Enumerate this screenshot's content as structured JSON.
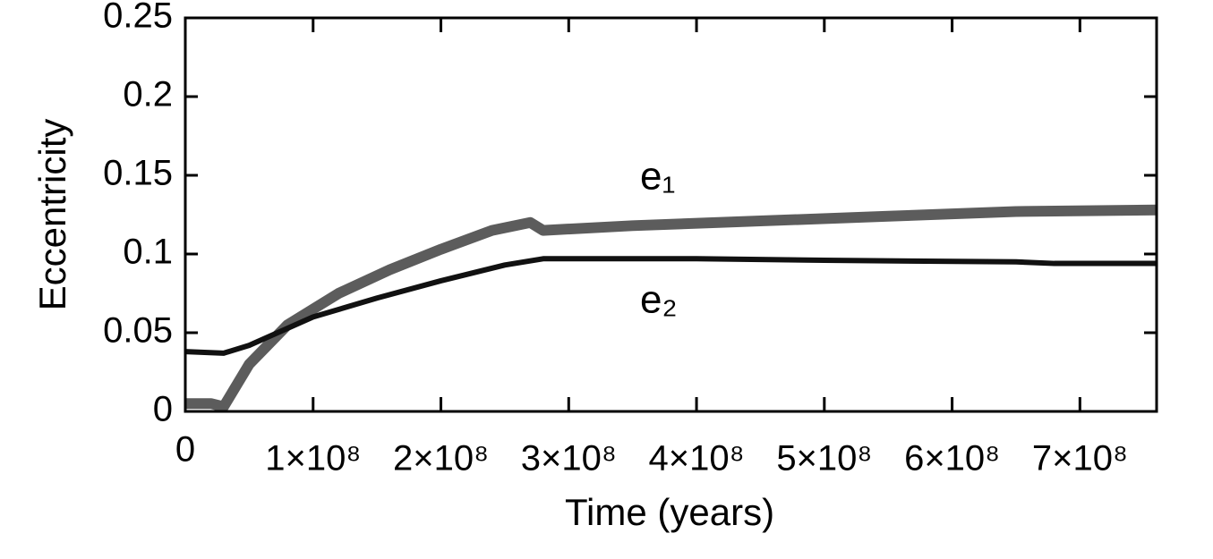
{
  "chart_data": {
    "type": "line",
    "xlabel": "Time (years)",
    "ylabel": "Eccentricity",
    "xlim": [
      0,
      760000000
    ],
    "ylim": [
      0,
      0.25
    ],
    "xticks": [
      0,
      {
        "value": 100000000,
        "label": "1×10⁸"
      },
      {
        "value": 200000000,
        "label": "2×10⁸"
      },
      {
        "value": 300000000,
        "label": "3×10⁸"
      },
      {
        "value": 400000000,
        "label": "4×10⁸"
      },
      {
        "value": 500000000,
        "label": "5×10⁸"
      },
      {
        "value": 600000000,
        "label": "6×10⁸"
      },
      {
        "value": 700000000,
        "label": "7×10⁸"
      }
    ],
    "yticks": [
      0,
      0.05,
      0.1,
      0.15,
      0.2,
      0.25
    ],
    "annotations": [
      "e₁",
      "e₂"
    ],
    "series": [
      {
        "color": "#333333",
        "x": [
          0,
          20000000,
          30000000,
          50000000,
          80000000,
          120000000,
          160000000,
          200000000,
          240000000,
          270000000,
          280000000,
          350000000,
          450000000,
          550000000,
          650000000,
          760000000
        ],
        "values": [
          0.005,
          0.005,
          0.003,
          0.03,
          0.055,
          0.075,
          0.09,
          0.103,
          0.115,
          0.12,
          0.115,
          0.118,
          0.121,
          0.124,
          0.127,
          0.128
        ]
      },
      {
        "color": "#111111",
        "x": [
          0,
          30000000,
          50000000,
          100000000,
          150000000,
          200000000,
          250000000,
          280000000,
          400000000,
          500000000,
          650000000,
          680000000,
          760000000
        ],
        "values": [
          0.038,
          0.037,
          0.042,
          0.06,
          0.072,
          0.083,
          0.093,
          0.097,
          0.097,
          0.096,
          0.095,
          0.094,
          0.094
        ]
      }
    ]
  }
}
